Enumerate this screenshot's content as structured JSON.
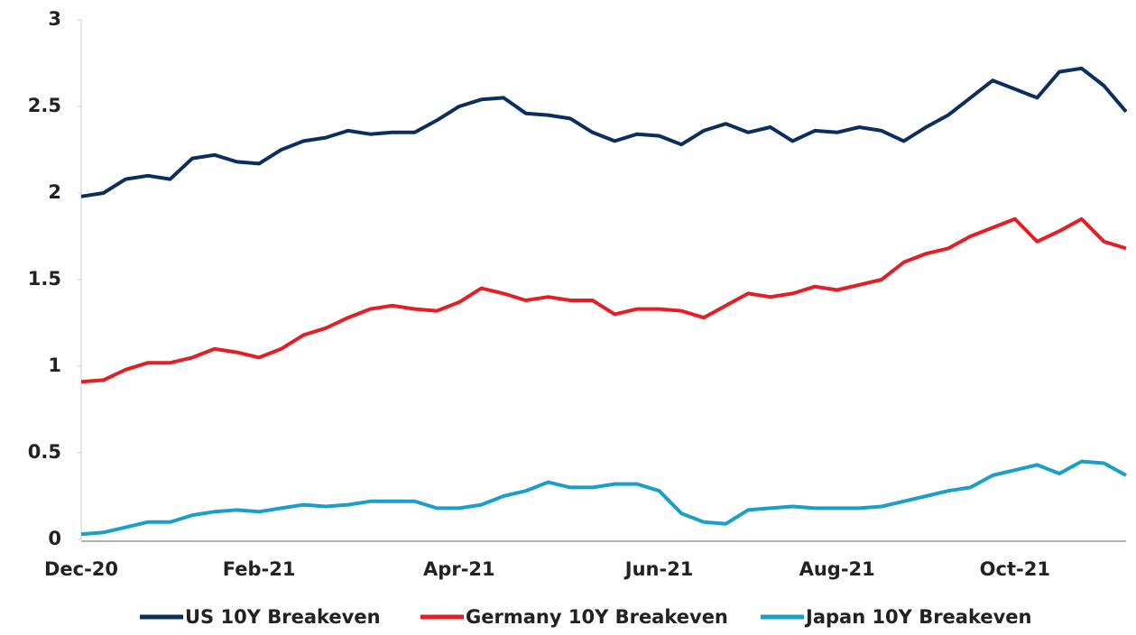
{
  "chart_data": {
    "type": "line",
    "categories": [
      "Dec-20",
      null,
      null,
      null,
      null,
      null,
      null,
      null,
      "Feb-21",
      null,
      null,
      null,
      null,
      null,
      null,
      null,
      null,
      "Apr-21",
      null,
      null,
      null,
      null,
      null,
      null,
      null,
      null,
      "Jun-21",
      null,
      null,
      null,
      null,
      null,
      null,
      null,
      "Aug-21",
      null,
      null,
      null,
      null,
      null,
      null,
      null,
      "Oct-21",
      null,
      null,
      null,
      null,
      null
    ],
    "series": [
      {
        "name": "US 10Y Breakeven",
        "color": "#0b2e5e",
        "values": [
          1.98,
          2.0,
          2.08,
          2.1,
          2.08,
          2.2,
          2.22,
          2.18,
          2.17,
          2.25,
          2.3,
          2.32,
          2.36,
          2.34,
          2.35,
          2.35,
          2.42,
          2.5,
          2.54,
          2.55,
          2.46,
          2.45,
          2.43,
          2.35,
          2.3,
          2.34,
          2.33,
          2.28,
          2.36,
          2.4,
          2.35,
          2.38,
          2.3,
          2.36,
          2.35,
          2.38,
          2.36,
          2.3,
          2.38,
          2.45,
          2.55,
          2.65,
          2.6,
          2.55,
          2.7,
          2.72,
          2.62,
          2.47
        ]
      },
      {
        "name": "Germany 10Y Breakeven",
        "color": "#e31e24",
        "values": [
          0.91,
          0.92,
          0.98,
          1.02,
          1.02,
          1.05,
          1.1,
          1.08,
          1.05,
          1.1,
          1.18,
          1.22,
          1.28,
          1.33,
          1.35,
          1.33,
          1.32,
          1.37,
          1.45,
          1.42,
          1.38,
          1.4,
          1.38,
          1.38,
          1.3,
          1.33,
          1.33,
          1.32,
          1.28,
          1.35,
          1.42,
          1.4,
          1.42,
          1.46,
          1.44,
          1.47,
          1.5,
          1.6,
          1.65,
          1.68,
          1.75,
          1.8,
          1.85,
          1.72,
          1.78,
          1.85,
          1.72,
          1.68
        ]
      },
      {
        "name": "Japan 10Y Breakeven",
        "color": "#1a9fc8",
        "values": [
          0.03,
          0.04,
          0.07,
          0.1,
          0.1,
          0.14,
          0.16,
          0.17,
          0.16,
          0.18,
          0.2,
          0.19,
          0.2,
          0.22,
          0.22,
          0.22,
          0.18,
          0.18,
          0.2,
          0.25,
          0.28,
          0.33,
          0.3,
          0.3,
          0.32,
          0.32,
          0.28,
          0.15,
          0.1,
          0.09,
          0.17,
          0.18,
          0.19,
          0.18,
          0.18,
          0.18,
          0.19,
          0.22,
          0.25,
          0.28,
          0.3,
          0.37,
          0.4,
          0.43,
          0.38,
          0.45,
          0.44,
          0.37
        ]
      }
    ],
    "ylim": [
      0,
      3
    ],
    "yticks": [
      0,
      0.5,
      1,
      1.5,
      2,
      2.5,
      3
    ],
    "legend": "bottom"
  }
}
